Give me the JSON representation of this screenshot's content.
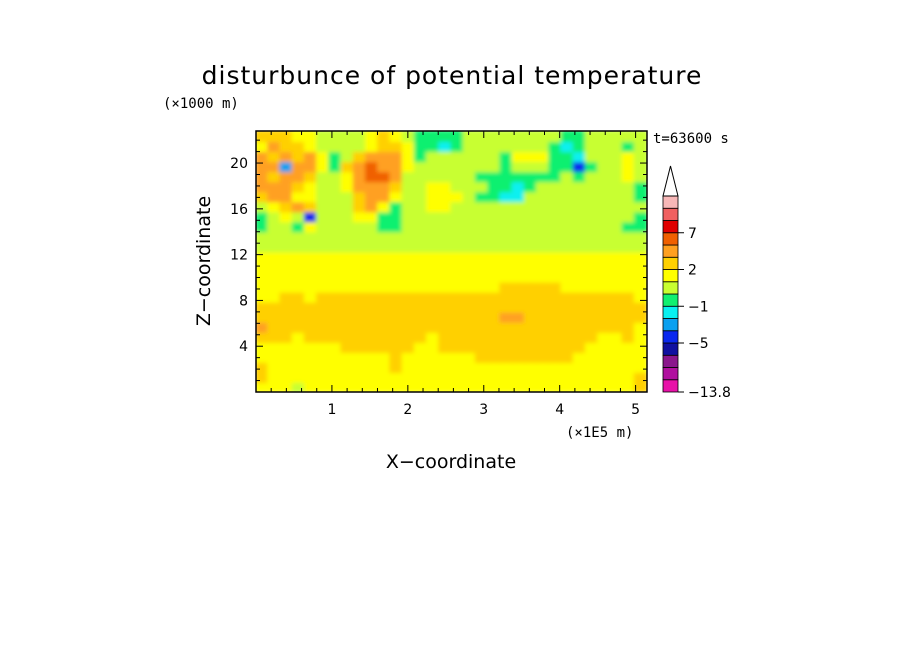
{
  "chart_data": {
    "type": "heatmap",
    "title": "disturbunce of potential temperature",
    "z_unit": "(×1000 m)",
    "x_unit": "(×1E5 m)",
    "time_label": "t=63600 s",
    "xlabel": "X−coordinate",
    "ylabel": "Z−coordinate",
    "xlim": [
      0,
      5.15
    ],
    "ylim": [
      0,
      22.8
    ],
    "x_ticks": [
      1,
      2,
      3,
      4,
      5
    ],
    "y_ticks": [
      4,
      8,
      12,
      16,
      20
    ],
    "colorbar": {
      "levels": [
        -13.8,
        -11,
        -9,
        -7,
        -5,
        -3,
        -2,
        -1,
        0,
        1,
        2,
        3,
        5,
        7,
        9,
        11
      ],
      "colors": [
        "#e812a8",
        "#b0109f",
        "#8a168c",
        "#1010a0",
        "#0a28ee",
        "#0aa0f0",
        "#08f0f0",
        "#10f070",
        "#c8ff30",
        "#ffff00",
        "#ffd000",
        "#ffa020",
        "#f06000",
        "#e00000",
        "#f06060",
        "#f8b8b8"
      ],
      "labels": [
        {
          "text": "7",
          "value": 7
        },
        {
          "text": "2",
          "value": 2
        },
        {
          "text": "−1",
          "value": -1
        },
        {
          "text": "−5",
          "value": -5
        },
        {
          "text": "−13.8",
          "value": -13.8
        }
      ],
      "extend_top": true
    },
    "field": {
      "x_range": [
        0,
        5.15
      ],
      "z_range": [
        0,
        22.8
      ],
      "rows_bottom_to_top": [
        [
          1,
          1,
          1,
          0,
          1,
          1,
          1,
          1,
          1,
          1,
          1,
          1,
          1,
          1,
          1,
          1,
          1,
          1,
          1,
          1,
          1,
          1,
          1,
          1,
          1,
          1,
          1,
          1,
          1,
          1,
          1,
          2
        ],
        [
          2,
          1,
          1,
          1,
          1,
          1,
          1,
          1,
          1,
          1,
          1,
          1,
          1,
          1,
          1,
          1,
          1,
          1,
          1,
          1,
          1,
          1,
          1,
          1,
          1,
          1,
          1,
          1,
          1,
          1,
          1,
          2
        ],
        [
          2,
          1,
          1,
          1,
          1,
          1,
          1,
          1,
          1,
          1,
          1,
          2,
          1,
          1,
          1,
          1,
          1,
          1,
          1,
          1,
          1,
          1,
          1,
          1,
          1,
          1,
          1,
          1,
          1,
          1,
          1,
          1
        ],
        [
          1,
          1,
          1,
          1,
          1,
          1,
          1,
          1,
          1,
          1,
          1,
          2,
          1,
          1,
          1,
          1,
          1,
          1,
          2,
          2,
          2,
          2,
          2,
          2,
          2,
          2,
          1,
          1,
          1,
          1,
          1,
          1
        ],
        [
          1,
          1,
          1,
          1,
          1,
          1,
          1,
          2,
          2,
          2,
          2,
          2,
          2,
          1,
          1,
          2,
          2,
          2,
          2,
          2,
          2,
          2,
          2,
          2,
          2,
          2,
          2,
          1,
          1,
          1,
          1,
          1
        ],
        [
          2,
          2,
          2,
          1,
          2,
          2,
          2,
          2,
          2,
          2,
          2,
          2,
          2,
          2,
          1,
          2,
          2,
          2,
          2,
          2,
          2,
          2,
          2,
          2,
          2,
          2,
          2,
          2,
          1,
          1,
          2,
          1
        ],
        [
          3,
          2,
          2,
          2,
          2,
          2,
          2,
          2,
          2,
          2,
          2,
          2,
          2,
          2,
          2,
          2,
          2,
          2,
          2,
          2,
          2,
          2,
          2,
          2,
          2,
          2,
          2,
          2,
          2,
          2,
          2,
          1
        ],
        [
          2,
          2,
          2,
          2,
          2,
          2,
          2,
          2,
          2,
          2,
          2,
          2,
          2,
          2,
          2,
          2,
          2,
          2,
          2,
          2,
          3,
          3,
          2,
          2,
          2,
          2,
          2,
          2,
          2,
          2,
          2,
          2
        ],
        [
          2,
          2,
          2,
          2,
          2,
          2,
          2,
          2,
          2,
          2,
          2,
          2,
          2,
          2,
          2,
          2,
          2,
          2,
          2,
          2,
          2,
          2,
          2,
          2,
          2,
          2,
          2,
          2,
          2,
          2,
          2,
          2
        ],
        [
          1,
          1,
          2,
          2,
          1,
          2,
          2,
          2,
          2,
          2,
          2,
          2,
          2,
          2,
          2,
          2,
          2,
          2,
          2,
          2,
          2,
          2,
          2,
          2,
          2,
          2,
          2,
          2,
          2,
          2,
          2,
          1
        ],
        [
          1,
          1,
          1,
          1,
          1,
          1,
          1,
          1,
          1,
          1,
          1,
          1,
          1,
          1,
          1,
          1,
          1,
          1,
          1,
          1,
          2,
          2,
          2,
          2,
          2,
          1,
          1,
          1,
          1,
          1,
          1,
          1
        ],
        [
          1,
          1,
          1,
          1,
          1,
          1,
          1,
          1,
          1,
          1,
          1,
          1,
          1,
          1,
          1,
          1,
          1,
          1,
          1,
          1,
          1,
          1,
          1,
          1,
          1,
          1,
          1,
          1,
          1,
          1,
          1,
          1
        ],
        [
          1,
          1,
          1,
          1,
          1,
          1,
          1,
          1,
          1,
          1,
          1,
          1,
          1,
          1,
          1,
          1,
          1,
          1,
          1,
          1,
          1,
          1,
          1,
          1,
          1,
          1,
          1,
          1,
          1,
          1,
          1,
          1
        ],
        [
          1,
          1,
          1,
          1,
          1,
          1,
          1,
          1,
          1,
          1,
          1,
          1,
          1,
          1,
          1,
          1,
          1,
          1,
          1,
          1,
          1,
          1,
          1,
          1,
          1,
          1,
          1,
          1,
          1,
          1,
          1,
          1
        ],
        [
          0,
          0,
          0,
          0,
          0,
          0,
          0,
          0,
          0,
          0,
          0,
          0,
          0,
          0,
          0,
          0,
          0,
          0,
          0,
          0,
          0,
          0,
          0,
          0,
          0,
          0,
          0,
          0,
          0,
          0,
          0,
          0
        ],
        [
          0,
          0,
          0,
          0,
          0,
          0,
          0,
          0,
          0,
          0,
          0,
          0,
          0,
          0,
          0,
          0,
          0,
          0,
          0,
          0,
          0,
          0,
          0,
          0,
          0,
          0,
          0,
          0,
          0,
          0,
          0,
          0
        ],
        [
          -1,
          0,
          0,
          -1,
          1,
          0,
          0,
          0,
          0,
          0,
          -1,
          -1,
          0,
          0,
          0,
          0,
          0,
          0,
          0,
          0,
          0,
          0,
          0,
          0,
          0,
          0,
          0,
          0,
          0,
          0,
          -1,
          -1
        ],
        [
          -1,
          0,
          1,
          0,
          -4,
          0,
          0,
          0,
          1,
          1,
          -1,
          -1,
          0,
          0,
          0,
          0,
          0,
          0,
          0,
          0,
          0,
          0,
          0,
          0,
          0,
          0,
          0,
          0,
          0,
          0,
          0,
          -1
        ],
        [
          0,
          1,
          2,
          3,
          2,
          0,
          0,
          0,
          2,
          3,
          1,
          -1,
          0,
          0,
          1,
          1,
          0,
          0,
          0,
          0,
          0,
          0,
          0,
          0,
          0,
          0,
          0,
          0,
          0,
          0,
          0,
          0
        ],
        [
          2,
          3,
          4,
          1,
          1,
          0,
          0,
          0,
          2,
          4,
          3,
          1,
          0,
          0,
          1,
          1,
          1,
          0,
          -1,
          -1,
          -2,
          -2,
          0,
          0,
          0,
          0,
          0,
          0,
          0,
          0,
          0,
          -1
        ],
        [
          3,
          4,
          3,
          2,
          1,
          0,
          0,
          1,
          3,
          4,
          4,
          2,
          0,
          0,
          1,
          1,
          0,
          0,
          0,
          -1,
          -1,
          -2,
          -1,
          0,
          0,
          0,
          0,
          0,
          0,
          0,
          0,
          -1
        ],
        [
          3,
          2,
          3,
          3,
          2,
          0,
          0,
          1,
          3,
          5,
          5,
          3,
          0,
          0,
          0,
          0,
          0,
          0,
          -1,
          -1,
          -1,
          -1,
          -1,
          -1,
          -1,
          0,
          -1,
          0,
          0,
          0,
          1,
          0
        ],
        [
          3,
          4,
          -3,
          3,
          3,
          1,
          -1,
          2,
          3,
          5,
          4,
          3,
          1,
          0,
          0,
          0,
          0,
          0,
          0,
          0,
          -1,
          0,
          0,
          0,
          -1,
          -1,
          -4,
          -1,
          0,
          0,
          1,
          0
        ],
        [
          4,
          2,
          3,
          2,
          3,
          1,
          -1,
          0,
          2,
          4,
          4,
          3,
          1,
          -1,
          0,
          0,
          0,
          0,
          0,
          0,
          -1,
          1,
          1,
          1,
          -1,
          -1,
          -2,
          0,
          0,
          0,
          1,
          0
        ],
        [
          1,
          3,
          2,
          2,
          1,
          0,
          0,
          0,
          0,
          1,
          2,
          2,
          1,
          -1,
          -1,
          -2,
          -1,
          0,
          0,
          0,
          0,
          0,
          0,
          0,
          -1,
          -2,
          -1,
          0,
          0,
          0,
          -1,
          0
        ],
        [
          2,
          2,
          2,
          1,
          1,
          0,
          0,
          0,
          0,
          1,
          2,
          1,
          0,
          -1,
          -1,
          -1,
          -1,
          0,
          0,
          0,
          0,
          0,
          0,
          0,
          0,
          -1,
          -1,
          0,
          0,
          0,
          0,
          0
        ]
      ]
    }
  }
}
